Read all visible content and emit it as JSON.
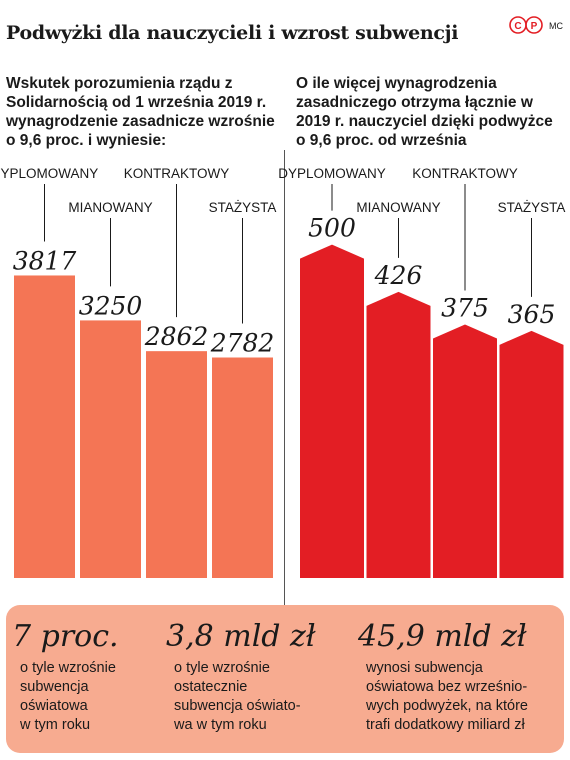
{
  "title": "Podwyżki dla nauczycieli i wzrost subwencji",
  "logo_text": "MC",
  "logo_mark": "CP",
  "colors": {
    "left_bars": "#f47555",
    "right_bars": "#e31e24",
    "panel_bg": "#f7ab90"
  },
  "left_heading": "Wskutek porozumienia rządu z Solidarnością od 1 września 2019 r. wynagrodzenie zasadnicze wzrośnie o 9,6 proc. i wyniesie:",
  "right_heading": "O ile więcej wynagrodzenia zasadniczego otrzyma łącznie w 2019 r. nauczyciel dzięki podwyżce o 9,6  proc. od września",
  "chart_data": [
    {
      "type": "bar",
      "categories": [
        "DYPLOMOWANY",
        "MIANOWANY",
        "KONTRAKTOWY",
        "STAŻYSTA"
      ],
      "values": [
        3817,
        3250,
        2862,
        2782
      ],
      "value_labels": [
        "3817",
        "3250",
        "2862",
        "2782"
      ],
      "ylim": [
        0,
        5400
      ],
      "grid": false
    },
    {
      "type": "bar",
      "categories": [
        "DYPLOMOWANY",
        "MIANOWANY",
        "KONTRAKTOWY",
        "STAŻYSTA"
      ],
      "values": [
        500,
        426,
        375,
        365
      ],
      "value_labels": [
        "500",
        "426",
        "375",
        "365"
      ],
      "ylim": [
        0,
        670
      ],
      "grid": false,
      "bar_style": "arrow"
    }
  ],
  "stats": [
    {
      "value": "7 proc.",
      "desc": [
        "o tyle wzrośnie",
        "subwencja",
        "oświatowa",
        "w tym roku"
      ]
    },
    {
      "value": "3,8 mld zł",
      "desc": [
        "o tyle wzrośnie",
        "ostatecznie",
        "subwencja oświato-",
        "wa w tym roku"
      ]
    },
    {
      "value": "45,9 mld zł",
      "desc": [
        "wynosi subwencja",
        "oświatowa bez wrześnio-",
        "wych podwyżek, na które",
        "trafi dodatkowy miliard zł"
      ]
    }
  ]
}
